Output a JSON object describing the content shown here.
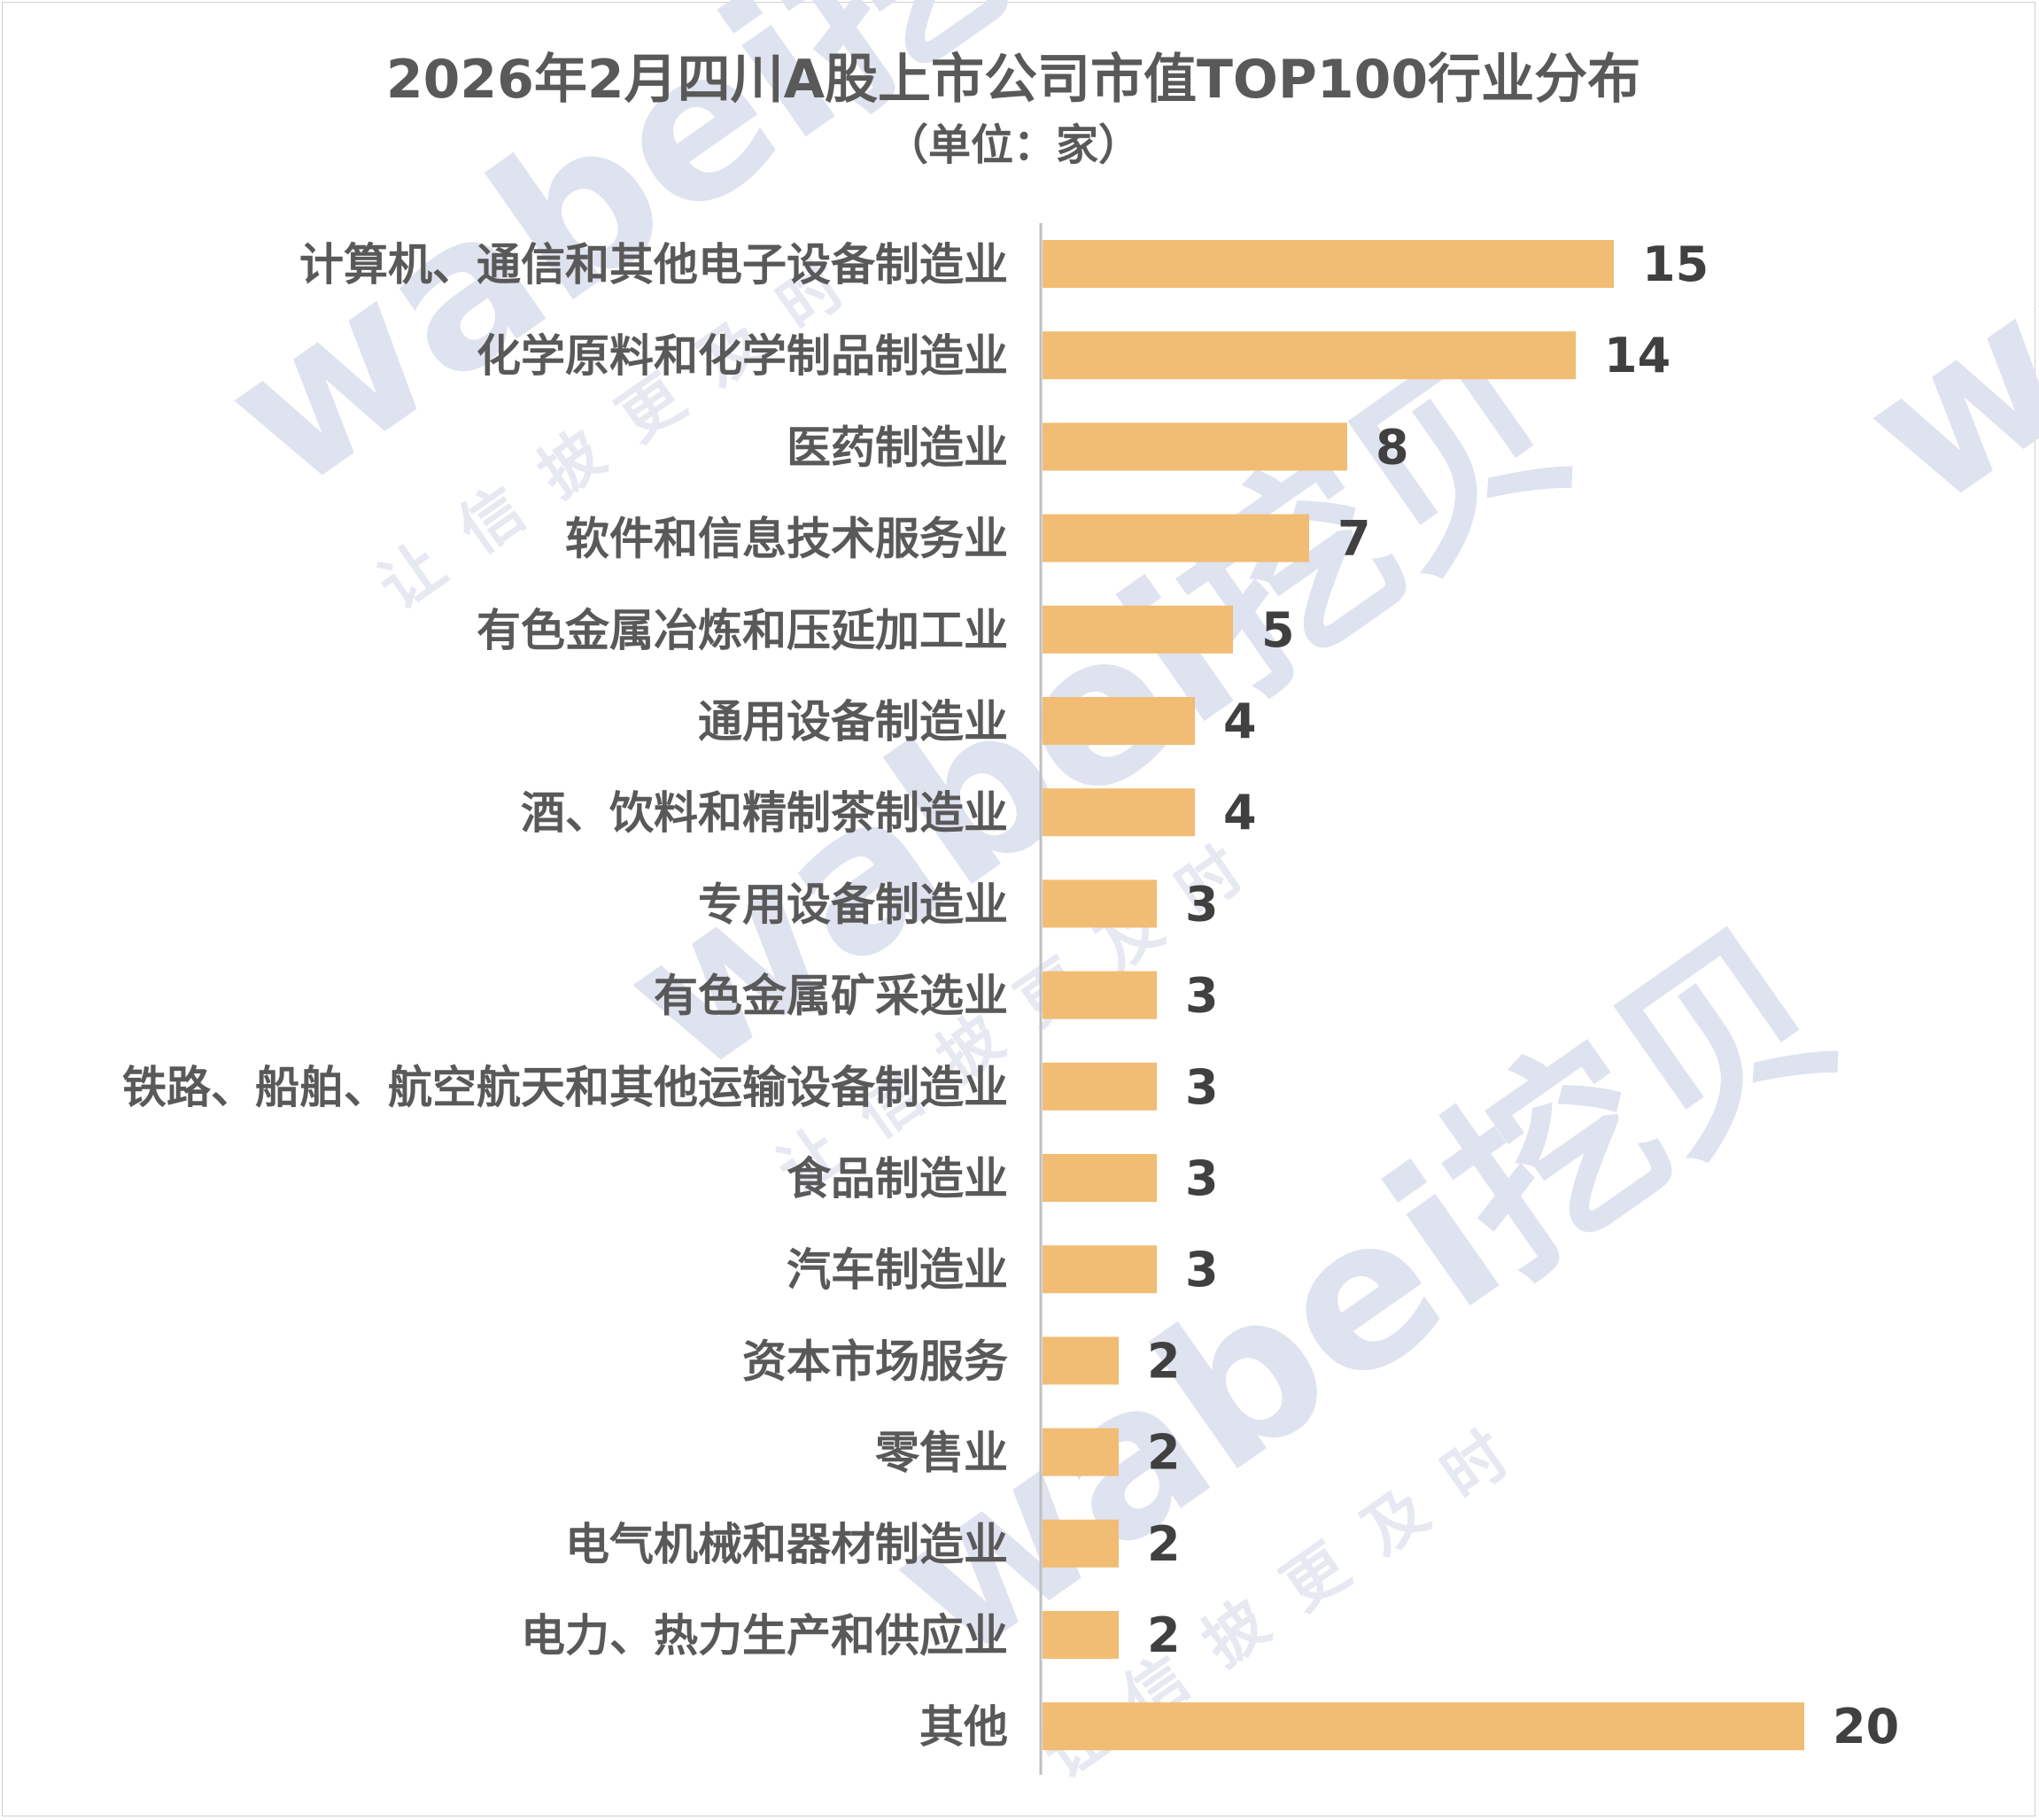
{
  "chart_data": {
    "type": "bar",
    "orientation": "horizontal",
    "title": "2026年2月四川A股上市公司市值TOP100行业分布",
    "subtitle": "（单位：家）",
    "categories": [
      "计算机、通信和其他电子设备制造业",
      "化学原料和化学制品制造业",
      "医药制造业",
      "软件和信息技术服务业",
      "有色金属冶炼和压延加工业",
      "通用设备制造业",
      "酒、饮料和精制茶制造业",
      "专用设备制造业",
      "有色金属矿采选业",
      "铁路、船舶、航空航天和其他运输设备制造业",
      "食品制造业",
      "汽车制造业",
      "资本市场服务",
      "零售业",
      "电气机械和器材制造业",
      "电力、热力生产和供应业",
      "其他"
    ],
    "values": [
      15,
      14,
      8,
      7,
      5,
      4,
      4,
      3,
      3,
      3,
      3,
      3,
      2,
      2,
      2,
      2,
      20
    ],
    "xlim": [
      0,
      20
    ],
    "grid": false,
    "legend": "none",
    "data_labels": true,
    "bar_color": "#F1BC73"
  },
  "watermark": {
    "brand": "wabei挖贝",
    "slogan": "让信披更及时"
  }
}
